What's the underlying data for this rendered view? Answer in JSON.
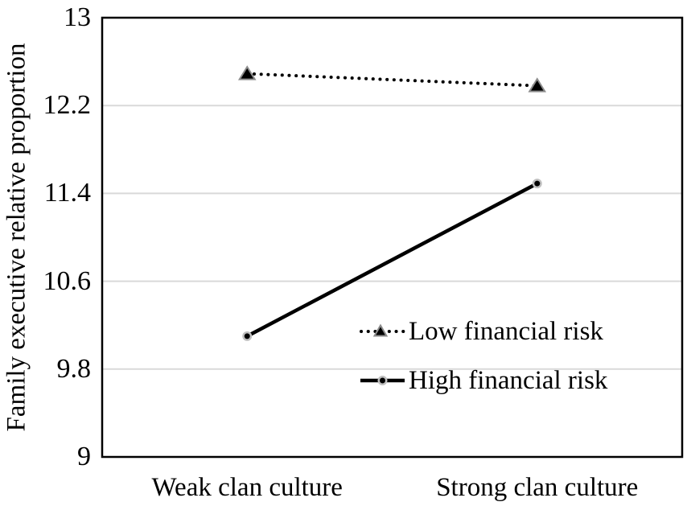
{
  "chart_data": {
    "type": "line",
    "title": "",
    "categories": [
      "Weak clan culture",
      "Strong clan culture"
    ],
    "series": [
      {
        "name": "Low financial risk",
        "values": [
          12.49,
          12.38
        ],
        "line": "dotted",
        "marker": "triangle"
      },
      {
        "name": "High financial risk",
        "values": [
          10.1,
          11.49
        ],
        "line": "solid",
        "marker": "circle"
      }
    ],
    "xlabel": "",
    "ylabel": "Family executive relative proportion",
    "ylim": [
      9,
      13
    ],
    "yticks": [
      9,
      9.8,
      10.6,
      11.4,
      12.2,
      13
    ],
    "ytick_labels": [
      "9",
      "9.8",
      "10.6",
      "11.4",
      "12.2",
      "13"
    ],
    "grid": "horizontal",
    "legend_position": "inside-bottom-right",
    "colors": {
      "series": "#000000",
      "triangle_border": "#8c8c8c",
      "circle_border": "#bfbfbf",
      "gridline": "#d9d9d9",
      "axis": "#000000",
      "text": "#000000",
      "background": "#ffffff"
    }
  }
}
